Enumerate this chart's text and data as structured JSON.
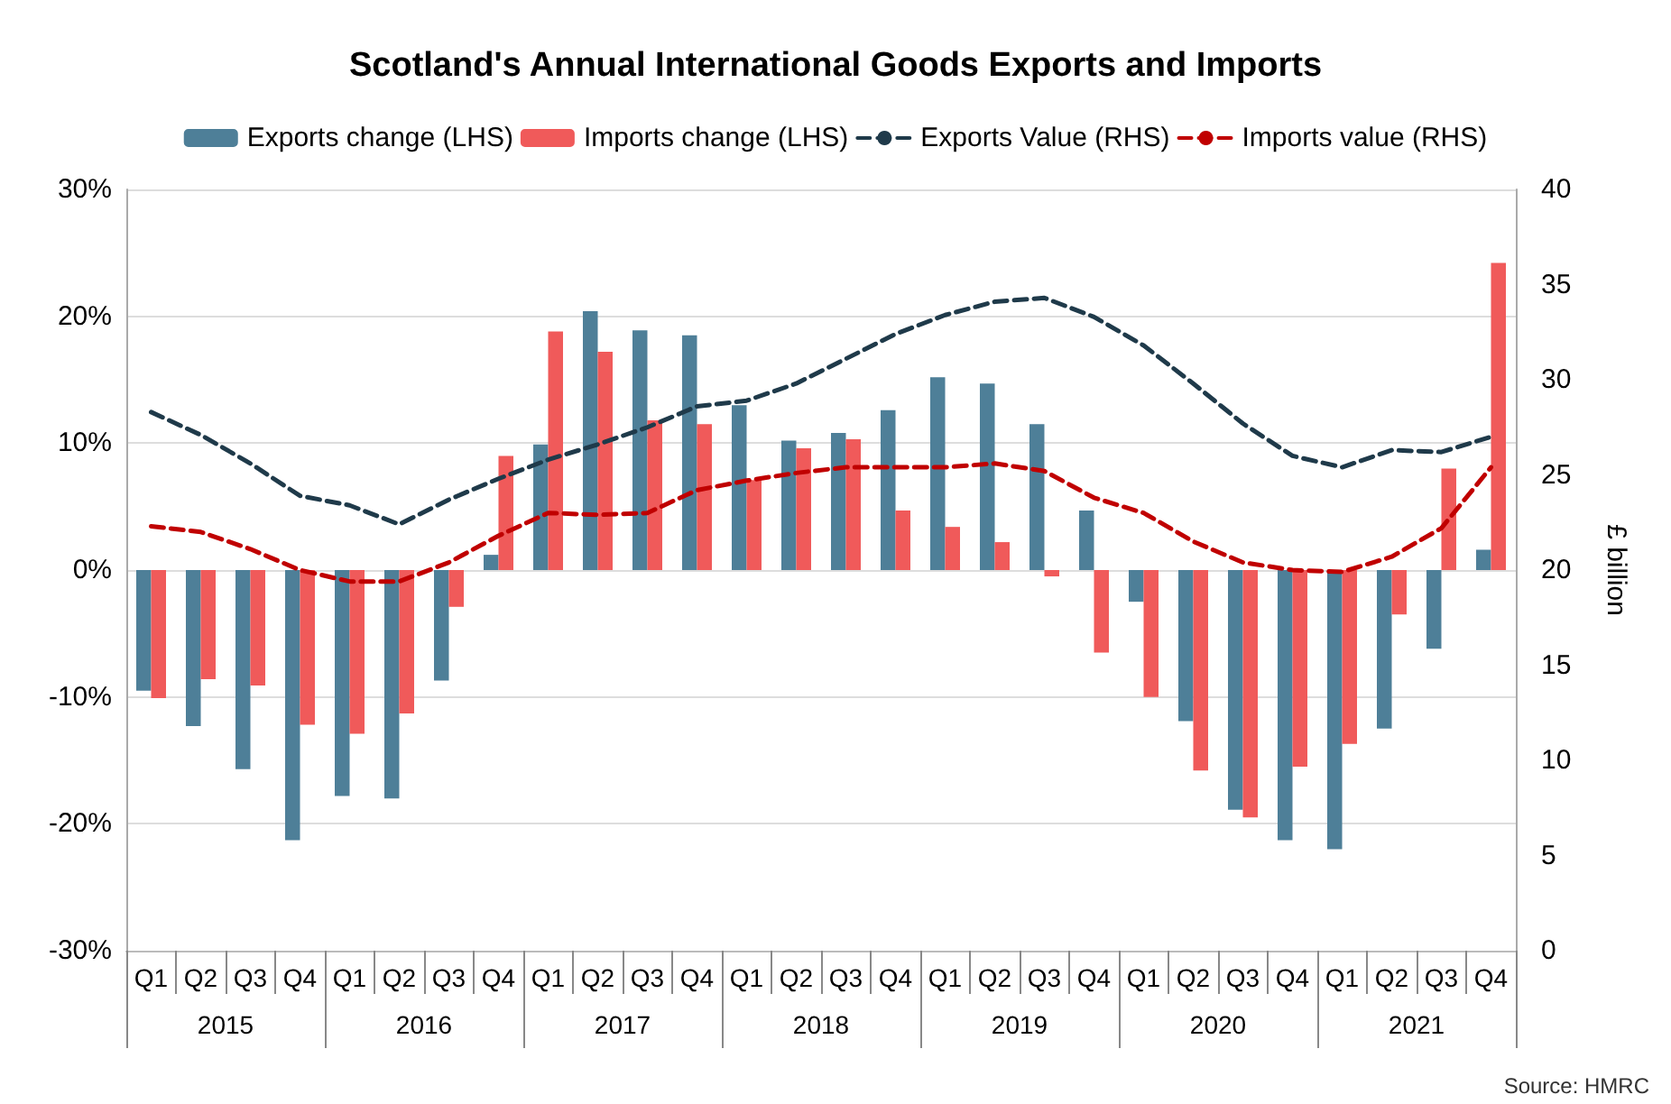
{
  "chart_data": {
    "type": "bar",
    "title": "Scotland's Annual International Goods Exports and Imports",
    "ylabel": null,
    "y2label": "£ billion",
    "categories": [
      "Q1",
      "Q2",
      "Q3",
      "Q4",
      "Q1",
      "Q2",
      "Q3",
      "Q4",
      "Q1",
      "Q2",
      "Q3",
      "Q4",
      "Q1",
      "Q2",
      "Q3",
      "Q4",
      "Q1",
      "Q2",
      "Q3",
      "Q4",
      "Q1",
      "Q2",
      "Q3",
      "Q4",
      "Q1",
      "Q2",
      "Q3",
      "Q4"
    ],
    "series": [
      {
        "name": "Exports change (LHS)",
        "color": "#4e7f98",
        "values": [
          -9.5,
          -12.3,
          -15.7,
          -21.3,
          -17.8,
          -18.0,
          -8.7,
          1.2,
          9.9,
          20.4,
          18.9,
          18.5,
          13.0,
          10.2,
          10.8,
          12.6,
          15.2,
          14.7,
          11.5,
          4.7,
          -2.5,
          -11.9,
          -18.9,
          -21.3,
          -22.0,
          -12.5,
          -6.2,
          1.6
        ]
      },
      {
        "name": "Imports change (LHS)",
        "color": "#f05a5a",
        "values": [
          -10.1,
          -8.6,
          -9.1,
          -12.2,
          -12.9,
          -11.3,
          -2.9,
          9.0,
          18.8,
          17.2,
          11.8,
          11.5,
          7.1,
          9.6,
          10.3,
          4.7,
          3.4,
          2.2,
          -0.5,
          -6.5,
          -10.0,
          -15.8,
          -19.5,
          -15.5,
          -13.7,
          -3.5,
          8.0,
          24.2
        ]
      },
      {
        "name": "Exports Value (RHS)",
        "type": "line",
        "axis": "y2",
        "color": "#1f3a4a",
        "line_style": "dashed",
        "values": [
          28.3,
          27.1,
          25.6,
          23.9,
          23.4,
          22.4,
          23.7,
          24.8,
          25.8,
          26.6,
          27.5,
          28.6,
          28.9,
          29.8,
          31.1,
          32.4,
          33.4,
          34.1,
          34.3,
          33.3,
          31.8,
          29.8,
          27.7,
          26.0,
          25.4,
          26.3,
          26.2,
          27.0
        ]
      },
      {
        "name": "Imports value (RHS)",
        "type": "line",
        "axis": "y2",
        "color": "#c00000",
        "line_style": "dashed",
        "values": [
          22.3,
          22.0,
          21.1,
          20.0,
          19.4,
          19.4,
          20.4,
          21.8,
          23.0,
          22.9,
          23.0,
          24.2,
          24.7,
          25.1,
          25.4,
          25.4,
          25.4,
          25.6,
          25.2,
          23.8,
          23.0,
          21.5,
          20.4,
          20.0,
          19.9,
          20.7,
          22.2,
          25.4
        ]
      }
    ],
    "ylim": [
      -30,
      30
    ],
    "yticks": [
      {
        "value": -30,
        "label": "-30%"
      },
      {
        "value": -20,
        "label": "-20%"
      },
      {
        "value": -10,
        "label": "-10%"
      },
      {
        "value": 0,
        "label": "0%"
      },
      {
        "value": 10,
        "label": "10%"
      },
      {
        "value": 20,
        "label": "20%"
      },
      {
        "value": 30,
        "label": "30%"
      }
    ],
    "y2lim": [
      0,
      40
    ],
    "y2ticks": [
      0,
      5,
      10,
      15,
      20,
      25,
      30,
      35,
      40
    ],
    "grid": "y",
    "legend": "top",
    "marker": "none",
    "annotations": [
      "2015",
      "2016",
      "2017",
      "2018",
      "2019",
      "2020",
      "2021",
      "Source: HMRC"
    ]
  }
}
